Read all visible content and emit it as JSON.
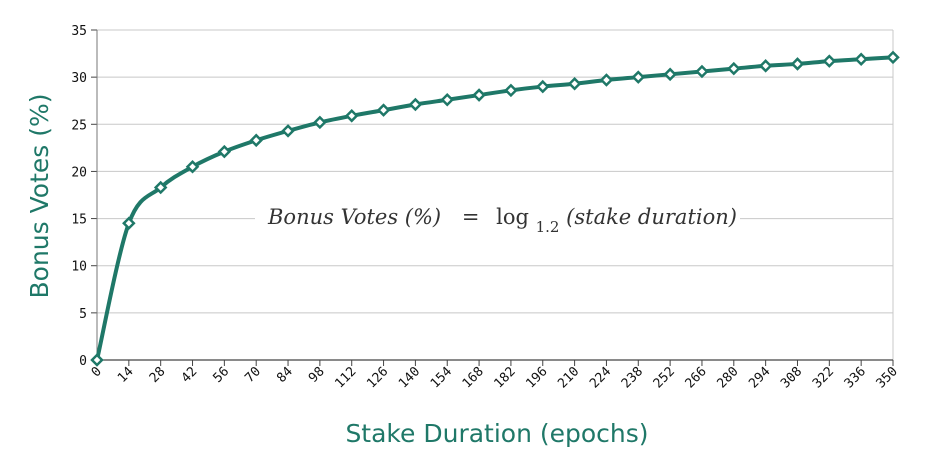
{
  "chart_data": {
    "type": "line",
    "xlabel": "Stake Duration (epochs)",
    "ylabel": "Bonus Votes (%)",
    "xlim": [
      0,
      350
    ],
    "ylim": [
      0,
      35
    ],
    "xticks": [
      0,
      14,
      28,
      42,
      56,
      70,
      84,
      98,
      112,
      126,
      140,
      154,
      168,
      182,
      196,
      210,
      224,
      238,
      252,
      266,
      280,
      294,
      308,
      322,
      336,
      350
    ],
    "yticks": [
      0,
      5,
      10,
      15,
      20,
      25,
      30,
      35
    ],
    "grid": "horizontal",
    "legend": "none",
    "line_color": "#1f7868",
    "annotation": {
      "lhs": "Bonus Votes (%)",
      "equals": "=",
      "func": "log",
      "base": "1.2",
      "arg": "(stake duration)"
    },
    "series": [
      {
        "x": [
          0,
          14,
          28,
          42,
          56,
          70,
          84,
          98,
          112,
          126,
          140,
          154,
          168,
          182,
          196,
          210,
          224,
          238,
          252,
          266,
          280,
          294,
          308,
          322,
          336,
          350
        ],
        "values": [
          0,
          14.5,
          18.3,
          20.5,
          22.1,
          23.3,
          24.3,
          25.2,
          25.9,
          26.5,
          27.1,
          27.6,
          28.1,
          28.6,
          29.0,
          29.3,
          29.7,
          30.0,
          30.3,
          30.6,
          30.9,
          31.2,
          31.4,
          31.7,
          31.9,
          32.1
        ]
      }
    ]
  }
}
